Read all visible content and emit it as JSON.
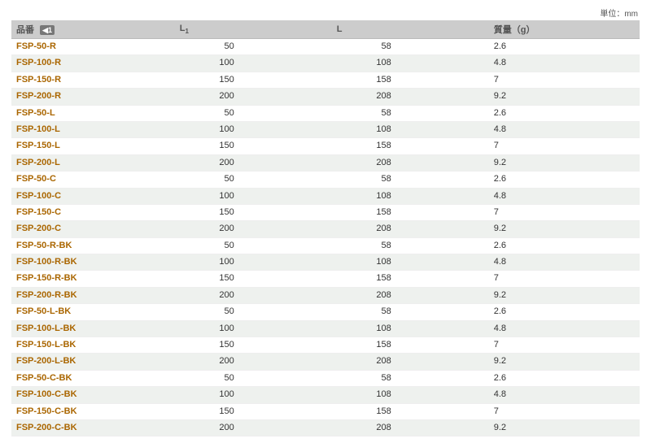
{
  "unit_label": "単位：mm",
  "headers": {
    "part_no": "品番",
    "sort_badge": "◀1",
    "L1_main": "L",
    "L1_sub": "1",
    "L": "L",
    "weight": "質量（g）"
  },
  "style": {
    "header_bg": "#cccccc",
    "header_text": "#555555",
    "part_no_color": "#aa6600",
    "row_even_bg": "#eef1ee",
    "row_odd_bg": "#ffffff",
    "border_color": "#eeeeee",
    "section_border": "#999999",
    "font_size_pt": 11
  },
  "rows": [
    {
      "pn": "FSP-50-R",
      "l1": "50",
      "l": "58",
      "w": "2.6",
      "section_start": false
    },
    {
      "pn": "FSP-100-R",
      "l1": "100",
      "l": "108",
      "w": "4.8",
      "section_start": false
    },
    {
      "pn": "FSP-150-R",
      "l1": "150",
      "l": "158",
      "w": "7",
      "section_start": false
    },
    {
      "pn": "FSP-200-R",
      "l1": "200",
      "l": "208",
      "w": "9.2",
      "section_start": false
    },
    {
      "pn": "FSP-50-L",
      "l1": "50",
      "l": "58",
      "w": "2.6",
      "section_start": false
    },
    {
      "pn": "FSP-100-L",
      "l1": "100",
      "l": "108",
      "w": "4.8",
      "section_start": false
    },
    {
      "pn": "FSP-150-L",
      "l1": "150",
      "l": "158",
      "w": "7",
      "section_start": false
    },
    {
      "pn": "FSP-200-L",
      "l1": "200",
      "l": "208",
      "w": "9.2",
      "section_start": false
    },
    {
      "pn": "FSP-50-C",
      "l1": "50",
      "l": "58",
      "w": "2.6",
      "section_start": false
    },
    {
      "pn": "FSP-100-C",
      "l1": "100",
      "l": "108",
      "w": "4.8",
      "section_start": false
    },
    {
      "pn": "FSP-150-C",
      "l1": "150",
      "l": "158",
      "w": "7",
      "section_start": false
    },
    {
      "pn": "FSP-200-C",
      "l1": "200",
      "l": "208",
      "w": "9.2",
      "section_start": false
    },
    {
      "pn": "FSP-50-R-BK",
      "l1": "50",
      "l": "58",
      "w": "2.6",
      "section_start": true
    },
    {
      "pn": "FSP-100-R-BK",
      "l1": "100",
      "l": "108",
      "w": "4.8",
      "section_start": false
    },
    {
      "pn": "FSP-150-R-BK",
      "l1": "150",
      "l": "158",
      "w": "7",
      "section_start": false
    },
    {
      "pn": "FSP-200-R-BK",
      "l1": "200",
      "l": "208",
      "w": "9.2",
      "section_start": false
    },
    {
      "pn": "FSP-50-L-BK",
      "l1": "50",
      "l": "58",
      "w": "2.6",
      "section_start": false
    },
    {
      "pn": "FSP-100-L-BK",
      "l1": "100",
      "l": "108",
      "w": "4.8",
      "section_start": false
    },
    {
      "pn": "FSP-150-L-BK",
      "l1": "150",
      "l": "158",
      "w": "7",
      "section_start": false
    },
    {
      "pn": "FSP-200-L-BK",
      "l1": "200",
      "l": "208",
      "w": "9.2",
      "section_start": false
    },
    {
      "pn": "FSP-50-C-BK",
      "l1": "50",
      "l": "58",
      "w": "2.6",
      "section_start": false
    },
    {
      "pn": "FSP-100-C-BK",
      "l1": "100",
      "l": "108",
      "w": "4.8",
      "section_start": false
    },
    {
      "pn": "FSP-150-C-BK",
      "l1": "150",
      "l": "158",
      "w": "7",
      "section_start": false
    },
    {
      "pn": "FSP-200-C-BK",
      "l1": "200",
      "l": "208",
      "w": "9.2",
      "section_start": false
    }
  ]
}
